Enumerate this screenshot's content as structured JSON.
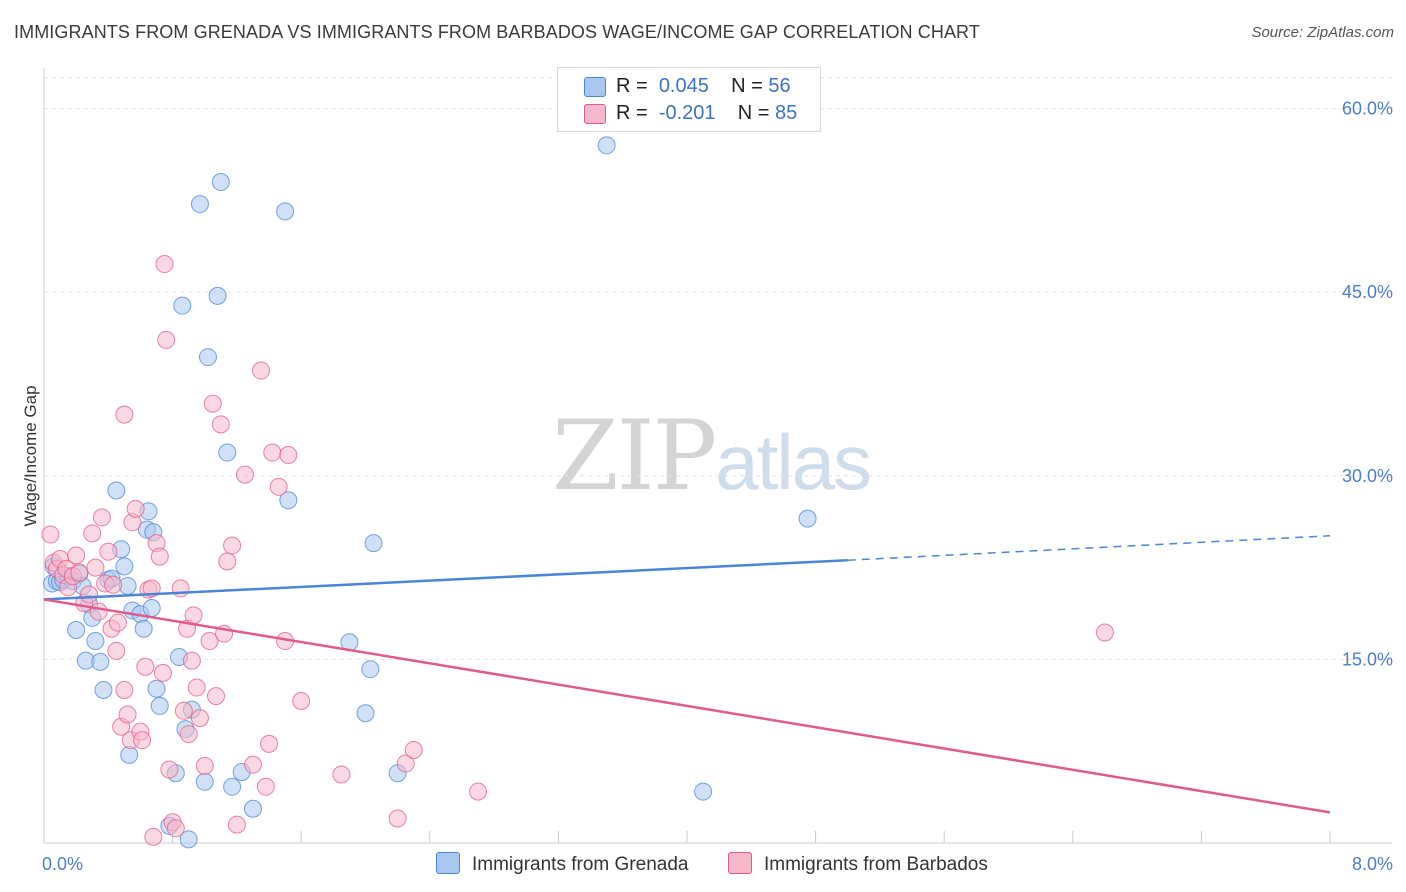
{
  "title": "IMMIGRANTS FROM GRENADA VS IMMIGRANTS FROM BARBADOS WAGE/INCOME GAP CORRELATION CHART",
  "source": "Source: ZipAtlas.com",
  "watermark": {
    "zip": "ZIP",
    "atlas": "atlas"
  },
  "legend": {
    "rows": [
      {
        "r_label": "R =",
        "r_value": "0.045",
        "n_label": "N =",
        "n_value": "56",
        "color": "#a9c8f0"
      },
      {
        "r_label": "R =",
        "r_value": "-0.201",
        "n_label": "N =",
        "n_value": "85",
        "color": "#f5b8cb"
      }
    ]
  },
  "chart_data": {
    "type": "scatter",
    "title": "IMMIGRANTS FROM GRENADA VS IMMIGRANTS FROM BARBADOS WAGE/INCOME GAP CORRELATION CHART",
    "xlabel": "",
    "ylabel": "Wage/Income Gap",
    "xlim": [
      0,
      8
    ],
    "ylim": [
      0,
      62.5
    ],
    "x_tick_labels": [
      "0.0%",
      "8.0%"
    ],
    "y_ticks": [
      15,
      30,
      45,
      60
    ],
    "y_tick_labels": [
      "15.0%",
      "30.0%",
      "45.0%",
      "60.0%"
    ],
    "grid": true,
    "legend_position": "top-center",
    "series": [
      {
        "name": "Immigrants from Grenada",
        "color": "#4a86d8",
        "fill": "#a9c8f0",
        "trend": {
          "x0": 0,
          "y0": 19.9,
          "x1": 5.0,
          "y1": 23.1,
          "dash_to_x": 8.0,
          "dash_to_y": 25.1
        },
        "points": [
          [
            0.05,
            21.2
          ],
          [
            0.06,
            22.6
          ],
          [
            0.08,
            21.4
          ],
          [
            0.1,
            21.3
          ],
          [
            0.12,
            21.5
          ],
          [
            0.15,
            21.8
          ],
          [
            0.18,
            21.4
          ],
          [
            0.2,
            17.4
          ],
          [
            0.22,
            22.0
          ],
          [
            0.24,
            21.0
          ],
          [
            0.26,
            14.9
          ],
          [
            0.28,
            19.5
          ],
          [
            0.3,
            18.4
          ],
          [
            0.32,
            16.5
          ],
          [
            0.35,
            14.8
          ],
          [
            0.37,
            12.5
          ],
          [
            0.4,
            21.5
          ],
          [
            0.42,
            21.6
          ],
          [
            0.45,
            28.8
          ],
          [
            0.48,
            24.0
          ],
          [
            0.5,
            22.6
          ],
          [
            0.52,
            21.0
          ],
          [
            0.53,
            7.2
          ],
          [
            0.55,
            19.0
          ],
          [
            0.6,
            18.7
          ],
          [
            0.62,
            17.5
          ],
          [
            0.64,
            25.6
          ],
          [
            0.65,
            27.1
          ],
          [
            0.67,
            19.2
          ],
          [
            0.68,
            25.4
          ],
          [
            0.7,
            12.6
          ],
          [
            0.72,
            11.2
          ],
          [
            0.78,
            1.4
          ],
          [
            0.82,
            5.7
          ],
          [
            0.84,
            15.2
          ],
          [
            0.86,
            43.9
          ],
          [
            0.88,
            9.3
          ],
          [
            0.9,
            0.3
          ],
          [
            0.92,
            10.9
          ],
          [
            0.97,
            52.2
          ],
          [
            1.0,
            5.0
          ],
          [
            1.02,
            39.7
          ],
          [
            1.08,
            44.7
          ],
          [
            1.1,
            54.0
          ],
          [
            1.14,
            31.9
          ],
          [
            1.17,
            4.6
          ],
          [
            1.23,
            5.8
          ],
          [
            1.3,
            2.8
          ],
          [
            1.5,
            51.6
          ],
          [
            1.52,
            28.0
          ],
          [
            1.9,
            16.4
          ],
          [
            2.05,
            24.5
          ],
          [
            2.03,
            14.2
          ],
          [
            2.0,
            10.6
          ],
          [
            2.2,
            5.7
          ],
          [
            3.5,
            57.0
          ],
          [
            4.1,
            4.2
          ],
          [
            4.75,
            26.5
          ]
        ]
      },
      {
        "name": "Immigrants from Barbados",
        "color": "#e05b8a",
        "fill": "#f5b8cb",
        "trend": {
          "x0": 0,
          "y0": 19.9,
          "x1": 8.0,
          "y1": 2.5
        },
        "points": [
          [
            0.04,
            25.2
          ],
          [
            0.06,
            22.9
          ],
          [
            0.08,
            22.4
          ],
          [
            0.1,
            23.2
          ],
          [
            0.12,
            21.9
          ],
          [
            0.14,
            22.4
          ],
          [
            0.15,
            20.9
          ],
          [
            0.18,
            21.8
          ],
          [
            0.2,
            23.5
          ],
          [
            0.22,
            22.1
          ],
          [
            0.25,
            19.6
          ],
          [
            0.28,
            20.3
          ],
          [
            0.3,
            25.3
          ],
          [
            0.32,
            22.5
          ],
          [
            0.34,
            18.9
          ],
          [
            0.36,
            26.6
          ],
          [
            0.38,
            21.2
          ],
          [
            0.4,
            23.8
          ],
          [
            0.42,
            17.5
          ],
          [
            0.43,
            21.1
          ],
          [
            0.45,
            15.7
          ],
          [
            0.46,
            18.0
          ],
          [
            0.48,
            9.5
          ],
          [
            0.5,
            12.5
          ],
          [
            0.5,
            35.0
          ],
          [
            0.52,
            10.5
          ],
          [
            0.54,
            8.4
          ],
          [
            0.55,
            26.2
          ],
          [
            0.57,
            27.3
          ],
          [
            0.6,
            9.1
          ],
          [
            0.61,
            8.4
          ],
          [
            0.63,
            14.4
          ],
          [
            0.65,
            20.7
          ],
          [
            0.67,
            20.8
          ],
          [
            0.68,
            0.5
          ],
          [
            0.7,
            24.5
          ],
          [
            0.72,
            23.4
          ],
          [
            0.74,
            13.9
          ],
          [
            0.75,
            47.3
          ],
          [
            0.76,
            41.1
          ],
          [
            0.78,
            6.0
          ],
          [
            0.8,
            1.7
          ],
          [
            0.82,
            1.2
          ],
          [
            0.85,
            20.8
          ],
          [
            0.87,
            10.8
          ],
          [
            0.89,
            17.5
          ],
          [
            0.9,
            8.9
          ],
          [
            0.92,
            14.9
          ],
          [
            0.93,
            18.6
          ],
          [
            0.95,
            12.7
          ],
          [
            0.97,
            10.2
          ],
          [
            1.0,
            6.3
          ],
          [
            1.03,
            16.5
          ],
          [
            1.05,
            35.9
          ],
          [
            1.07,
            12.0
          ],
          [
            1.1,
            34.2
          ],
          [
            1.12,
            17.1
          ],
          [
            1.14,
            23.0
          ],
          [
            1.17,
            24.3
          ],
          [
            1.2,
            1.5
          ],
          [
            1.25,
            30.1
          ],
          [
            1.3,
            6.4
          ],
          [
            1.35,
            38.6
          ],
          [
            1.38,
            4.6
          ],
          [
            1.4,
            8.1
          ],
          [
            1.42,
            31.9
          ],
          [
            1.46,
            29.1
          ],
          [
            1.5,
            16.5
          ],
          [
            1.52,
            31.7
          ],
          [
            1.6,
            11.6
          ],
          [
            1.85,
            5.6
          ],
          [
            2.2,
            2.0
          ],
          [
            2.25,
            6.5
          ],
          [
            2.3,
            7.6
          ],
          [
            2.7,
            4.2
          ],
          [
            6.6,
            17.2
          ]
        ]
      }
    ]
  },
  "bottom_legend": [
    {
      "label": "Immigrants from Grenada",
      "color": "#a9c8f0",
      "border": "#4a86d8"
    },
    {
      "label": "Immigrants from Barbados",
      "color": "#f5b8cb",
      "border": "#e05b8a"
    }
  ]
}
